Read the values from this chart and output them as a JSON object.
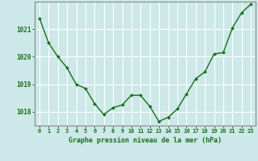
{
  "x": [
    0,
    1,
    2,
    3,
    4,
    5,
    6,
    7,
    8,
    9,
    10,
    11,
    12,
    13,
    14,
    15,
    16,
    17,
    18,
    19,
    20,
    21,
    22,
    23
  ],
  "y": [
    1021.4,
    1020.5,
    1020.0,
    1019.6,
    1019.0,
    1018.85,
    1018.3,
    1017.9,
    1018.15,
    1018.25,
    1018.6,
    1018.6,
    1018.2,
    1017.65,
    1017.8,
    1018.1,
    1018.65,
    1019.2,
    1019.45,
    1020.1,
    1020.15,
    1021.05,
    1021.6,
    1021.9
  ],
  "ylim": [
    1017.5,
    1022.0
  ],
  "yticks": [
    1018,
    1019,
    1020,
    1021
  ],
  "xticks": [
    0,
    1,
    2,
    3,
    4,
    5,
    6,
    7,
    8,
    9,
    10,
    11,
    12,
    13,
    14,
    15,
    16,
    17,
    18,
    19,
    20,
    21,
    22,
    23
  ],
  "line_color": "#1a6e1a",
  "marker_color": "#1a6e1a",
  "background_color": "#cce8e8",
  "grid_color": "#b0d8d8",
  "xlabel": "Graphe pression niveau de la mer (hPa)",
  "xlabel_color": "#1a6e1a",
  "tick_color": "#1a6e1a",
  "spine_color": "#888888"
}
